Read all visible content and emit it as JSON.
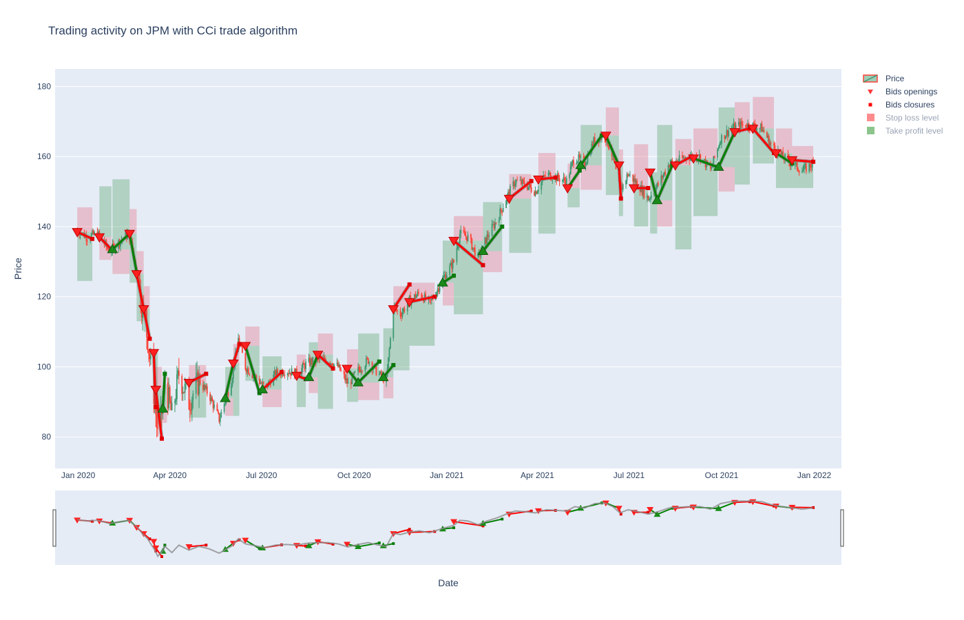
{
  "chart_data": {
    "type": "candlestick",
    "title": "Trading activity on JPM with CCi trade algorithm",
    "xlabel": "Date",
    "ylabel": "Price",
    "ylim": [
      71,
      185
    ],
    "xlim": [
      "2019-12-09",
      "2022-01-28"
    ],
    "x_ticks": [
      {
        "date": "2020-01-01",
        "label": "Jan 2020"
      },
      {
        "date": "2020-04-01",
        "label": "Apr 2020"
      },
      {
        "date": "2020-07-01",
        "label": "Jul 2020"
      },
      {
        "date": "2020-10-01",
        "label": "Oct 2020"
      },
      {
        "date": "2021-01-01",
        "label": "Jan 2021"
      },
      {
        "date": "2021-04-01",
        "label": "Apr 2021"
      },
      {
        "date": "2021-07-01",
        "label": "Jul 2021"
      },
      {
        "date": "2021-10-01",
        "label": "Oct 2021"
      },
      {
        "date": "2022-01-01",
        "label": "Jan 2022"
      }
    ],
    "y_ticks": [
      80,
      100,
      120,
      140,
      160,
      180
    ],
    "grid": true,
    "legend_placement": "top-right",
    "legend": [
      {
        "label": "Price",
        "kind": "candle",
        "visible": true
      },
      {
        "label": "Bids openings",
        "kind": "triangle",
        "color": "#ff3b3b",
        "visible": true
      },
      {
        "label": "Bids closures",
        "kind": "square",
        "color": "#ff0000",
        "visible": true
      },
      {
        "label": "Stop loss level",
        "kind": "box",
        "color": "#ff7f7f",
        "visible": false
      },
      {
        "label": "Take profit level",
        "kind": "box",
        "color": "#7fbf7f",
        "visible": false
      }
    ],
    "colors": {
      "increasing": "#3d9970",
      "decreasing": "#ff4136",
      "win_line": "#008000",
      "loss_line": "#ff0000",
      "stop_loss_box": "rgba(230,110,130,0.35)",
      "take_profit_box": "rgba(80,160,100,0.35)",
      "plot_bg": "#e5ecf6"
    },
    "price_path": [
      [
        "2019-12-31",
        139
      ],
      [
        "2020-01-10",
        137
      ],
      [
        "2020-01-20",
        138
      ],
      [
        "2020-02-01",
        133
      ],
      [
        "2020-02-12",
        136
      ],
      [
        "2020-02-20",
        138
      ],
      [
        "2020-02-28",
        128
      ],
      [
        "2020-03-05",
        116
      ],
      [
        "2020-03-10",
        108
      ],
      [
        "2020-03-13",
        100
      ],
      [
        "2020-03-17",
        90
      ],
      [
        "2020-03-20",
        80
      ],
      [
        "2020-03-24",
        87
      ],
      [
        "2020-03-27",
        96
      ],
      [
        "2020-04-03",
        86
      ],
      [
        "2020-04-10",
        98
      ],
      [
        "2020-04-20",
        90
      ],
      [
        "2020-04-30",
        96
      ],
      [
        "2020-05-10",
        92
      ],
      [
        "2020-05-20",
        85
      ],
      [
        "2020-06-01",
        96
      ],
      [
        "2020-06-08",
        108
      ],
      [
        "2020-06-15",
        100
      ],
      [
        "2020-06-25",
        97
      ],
      [
        "2020-07-05",
        94
      ],
      [
        "2020-07-15",
        98
      ],
      [
        "2020-07-25",
        99
      ],
      [
        "2020-08-05",
        98
      ],
      [
        "2020-08-15",
        101
      ],
      [
        "2020-08-25",
        102
      ],
      [
        "2020-09-05",
        102
      ],
      [
        "2020-09-15",
        100
      ],
      [
        "2020-09-25",
        95
      ],
      [
        "2020-10-05",
        99
      ],
      [
        "2020-10-15",
        102
      ],
      [
        "2020-10-25",
        98
      ],
      [
        "2020-11-02",
        96
      ],
      [
        "2020-11-09",
        117
      ],
      [
        "2020-11-16",
        115
      ],
      [
        "2020-11-25",
        119
      ],
      [
        "2020-12-05",
        121
      ],
      [
        "2020-12-15",
        118
      ],
      [
        "2020-12-28",
        125
      ],
      [
        "2021-01-08",
        130
      ],
      [
        "2021-01-14",
        138
      ],
      [
        "2021-01-22",
        137
      ],
      [
        "2021-02-01",
        131
      ],
      [
        "2021-02-10",
        137
      ],
      [
        "2021-02-20",
        142
      ],
      [
        "2021-03-01",
        148
      ],
      [
        "2021-03-10",
        153
      ],
      [
        "2021-03-20",
        152
      ],
      [
        "2021-03-30",
        150
      ],
      [
        "2021-04-10",
        155
      ],
      [
        "2021-04-20",
        154
      ],
      [
        "2021-04-30",
        153
      ],
      [
        "2021-05-08",
        160
      ],
      [
        "2021-05-18",
        158
      ],
      [
        "2021-05-28",
        165
      ],
      [
        "2021-06-07",
        166
      ],
      [
        "2021-06-15",
        160
      ],
      [
        "2021-06-22",
        150
      ],
      [
        "2021-06-30",
        155
      ],
      [
        "2021-07-10",
        152
      ],
      [
        "2021-07-20",
        148
      ],
      [
        "2021-07-30",
        152
      ],
      [
        "2021-08-10",
        158
      ],
      [
        "2021-08-20",
        159
      ],
      [
        "2021-08-30",
        160
      ],
      [
        "2021-09-10",
        160
      ],
      [
        "2021-09-20",
        156
      ],
      [
        "2021-09-30",
        165
      ],
      [
        "2021-10-10",
        168
      ],
      [
        "2021-10-20",
        169
      ],
      [
        "2021-10-30",
        169
      ],
      [
        "2021-11-10",
        168
      ],
      [
        "2021-11-20",
        163
      ],
      [
        "2021-11-30",
        160
      ],
      [
        "2021-12-10",
        158
      ],
      [
        "2021-12-20",
        156
      ],
      [
        "2021-12-31",
        158
      ]
    ],
    "trades": [
      {
        "open": [
          "2019-12-31",
          138.5
        ],
        "close": [
          "2020-01-15",
          136.5
        ],
        "dir": "short",
        "sl": 145.5,
        "tp": 124.5,
        "result": "loss"
      },
      {
        "open": [
          "2020-01-22",
          137
        ],
        "close": [
          "2020-02-03",
          133.5
        ],
        "dir": "short",
        "sl": 130.5,
        "tp": 151.5,
        "result": "loss"
      },
      {
        "open": [
          "2020-02-04",
          133.5
        ],
        "close": [
          "2020-02-21",
          138
        ],
        "dir": "long",
        "sl": 126.5,
        "tp": 153.5,
        "result": "win"
      },
      {
        "open": [
          "2020-02-21",
          138
        ],
        "close": [
          "2020-02-28",
          127
        ],
        "dir": "short",
        "sl": 145,
        "tp": 124,
        "result": "win"
      },
      {
        "open": [
          "2020-02-28",
          126.5
        ],
        "close": [
          "2020-03-06",
          116.5
        ],
        "dir": "short",
        "sl": 133,
        "tp": 113,
        "result": "loss"
      },
      {
        "open": [
          "2020-03-06",
          116.5
        ],
        "close": [
          "2020-03-12",
          108
        ],
        "dir": "short",
        "sl": 123,
        "tp": 110,
        "result": "loss"
      },
      {
        "open": [
          "2020-03-16",
          104
        ],
        "close": [
          "2020-03-18",
          88.5
        ],
        "dir": "short",
        "sl": 104,
        "tp": 88.5,
        "result": "loss"
      },
      {
        "open": [
          "2020-03-18",
          93.5
        ],
        "close": [
          "2020-03-24",
          79.5
        ],
        "dir": "short",
        "sl": 100,
        "tp": 86,
        "result": "loss"
      },
      {
        "open": [
          "2020-03-25",
          88
        ],
        "close": [
          "2020-03-27",
          98
        ],
        "dir": "long",
        "sl": 84,
        "tp": 95,
        "result": "win"
      },
      {
        "open": [
          "2020-04-20",
          95.5
        ],
        "close": [
          "2020-05-07",
          98
        ],
        "dir": "short",
        "sl": 100.5,
        "tp": 85.5,
        "result": "loss"
      },
      {
        "open": [
          "2020-05-26",
          91
        ],
        "close": [
          "2020-06-03",
          101
        ],
        "dir": "long",
        "sl": 86,
        "tp": 100,
        "result": "win"
      },
      {
        "open": [
          "2020-06-03",
          101
        ],
        "close": [
          "2020-06-09",
          106.5
        ],
        "dir": "short",
        "sl": 106.5,
        "tp": 86,
        "result": "loss"
      },
      {
        "open": [
          "2020-06-15",
          106
        ],
        "close": [
          "2020-06-29",
          92.5
        ],
        "dir": "short",
        "sl": 111.5,
        "tp": 96,
        "result": "win"
      },
      {
        "open": [
          "2020-07-02",
          93.5
        ],
        "close": [
          "2020-07-21",
          98.5
        ],
        "dir": "long",
        "sl": 88.5,
        "tp": 103,
        "result": "loss"
      },
      {
        "open": [
          "2020-08-05",
          97.5
        ],
        "close": [
          "2020-08-14",
          96.5
        ],
        "dir": "short",
        "sl": 103.5,
        "tp": 88.5,
        "result": "loss"
      },
      {
        "open": [
          "2020-08-17",
          97
        ],
        "close": [
          "2020-08-26",
          103.5
        ],
        "dir": "long",
        "sl": 92.5,
        "tp": 107,
        "result": "win"
      },
      {
        "open": [
          "2020-08-26",
          103.5
        ],
        "close": [
          "2020-09-10",
          99.5
        ],
        "dir": "short",
        "sl": 109.5,
        "tp": 88,
        "result": "loss"
      },
      {
        "open": [
          "2020-09-24",
          99.5
        ],
        "close": [
          "2020-10-05",
          95.5
        ],
        "dir": "short",
        "sl": 105,
        "tp": 90,
        "result": "win"
      },
      {
        "open": [
          "2020-10-05",
          95.5
        ],
        "close": [
          "2020-10-26",
          101.5
        ],
        "dir": "long",
        "sl": 90.5,
        "tp": 109.5,
        "result": "win"
      },
      {
        "open": [
          "2020-10-30",
          97
        ],
        "close": [
          "2020-11-09",
          100.5
        ],
        "dir": "long",
        "sl": 91,
        "tp": 111,
        "result": "win"
      },
      {
        "open": [
          "2020-11-09",
          116.5
        ],
        "close": [
          "2020-11-25",
          123.5
        ],
        "dir": "short",
        "sl": 123,
        "tp": 99,
        "result": "loss"
      },
      {
        "open": [
          "2020-11-25",
          118.5
        ],
        "close": [
          "2020-12-20",
          120
        ],
        "dir": "short",
        "sl": 124,
        "tp": 106,
        "result": "loss"
      },
      {
        "open": [
          "2020-12-28",
          124
        ],
        "close": [
          "2021-01-08",
          126
        ],
        "dir": "long",
        "sl": 117.5,
        "tp": 136,
        "result": "win"
      },
      {
        "open": [
          "2021-01-08",
          136
        ],
        "close": [
          "2021-02-06",
          129
        ],
        "dir": "short",
        "sl": 143,
        "tp": 115,
        "result": "loss"
      },
      {
        "open": [
          "2021-02-06",
          133
        ],
        "close": [
          "2021-02-25",
          140
        ],
        "dir": "long",
        "sl": 127,
        "tp": 147,
        "result": "win"
      },
      {
        "open": [
          "2021-03-04",
          148
        ],
        "close": [
          "2021-03-26",
          153
        ],
        "dir": "short",
        "sl": 155,
        "tp": 132.5,
        "result": "loss"
      },
      {
        "open": [
          "2021-04-02",
          153.5
        ],
        "close": [
          "2021-04-19",
          154
        ],
        "dir": "short",
        "sl": 161,
        "tp": 138,
        "result": "loss"
      },
      {
        "open": [
          "2021-05-01",
          151
        ],
        "close": [
          "2021-05-13",
          156
        ],
        "dir": "short",
        "sl": 158,
        "tp": 145.5,
        "result": "win"
      },
      {
        "open": [
          "2021-05-14",
          157.5
        ],
        "close": [
          "2021-06-04",
          166
        ],
        "dir": "long",
        "sl": 150.5,
        "tp": 169,
        "result": "win"
      },
      {
        "open": [
          "2021-06-08",
          166
        ],
        "close": [
          "2021-06-21",
          157.5
        ],
        "dir": "short",
        "sl": 174,
        "tp": 149,
        "result": "win"
      },
      {
        "open": [
          "2021-06-21",
          157.5
        ],
        "close": [
          "2021-06-23",
          148
        ],
        "dir": "short",
        "sl": 162,
        "tp": 143,
        "result": "loss"
      },
      {
        "open": [
          "2021-07-06",
          151
        ],
        "close": [
          "2021-07-20",
          151
        ],
        "dir": "short",
        "sl": 163.5,
        "tp": 140,
        "result": "loss"
      },
      {
        "open": [
          "2021-07-22",
          155.5
        ],
        "close": [
          "2021-07-29",
          147.5
        ],
        "dir": "short",
        "sl": 155.5,
        "tp": 138,
        "result": "win"
      },
      {
        "open": [
          "2021-07-29",
          147.5
        ],
        "close": [
          "2021-08-13",
          157.5
        ],
        "dir": "long",
        "sl": 140,
        "tp": 169,
        "result": "win"
      },
      {
        "open": [
          "2021-08-16",
          157.5
        ],
        "close": [
          "2021-09-01",
          160
        ],
        "dir": "short",
        "sl": 165,
        "tp": 133.5,
        "result": "loss"
      },
      {
        "open": [
          "2021-09-03",
          159.5
        ],
        "close": [
          "2021-09-27",
          157
        ],
        "dir": "short",
        "sl": 168,
        "tp": 143,
        "result": "win"
      },
      {
        "open": [
          "2021-09-28",
          157
        ],
        "close": [
          "2021-10-14",
          167
        ],
        "dir": "long",
        "sl": 150,
        "tp": 174,
        "result": "win"
      },
      {
        "open": [
          "2021-10-14",
          167
        ],
        "close": [
          "2021-10-29",
          168
        ],
        "dir": "short",
        "sl": 175.5,
        "tp": 152,
        "result": "loss"
      },
      {
        "open": [
          "2021-11-01",
          168
        ],
        "close": [
          "2021-11-22",
          161
        ],
        "dir": "short",
        "sl": 177,
        "tp": 158,
        "result": "loss"
      },
      {
        "open": [
          "2021-11-24",
          161
        ],
        "close": [
          "2021-12-10",
          158
        ],
        "dir": "short",
        "sl": 168,
        "tp": 151,
        "result": "win"
      },
      {
        "open": [
          "2021-12-10",
          159
        ],
        "close": [
          "2021-12-31",
          158.5
        ],
        "dir": "short",
        "sl": 163,
        "tp": 151,
        "result": "loss"
      }
    ]
  }
}
